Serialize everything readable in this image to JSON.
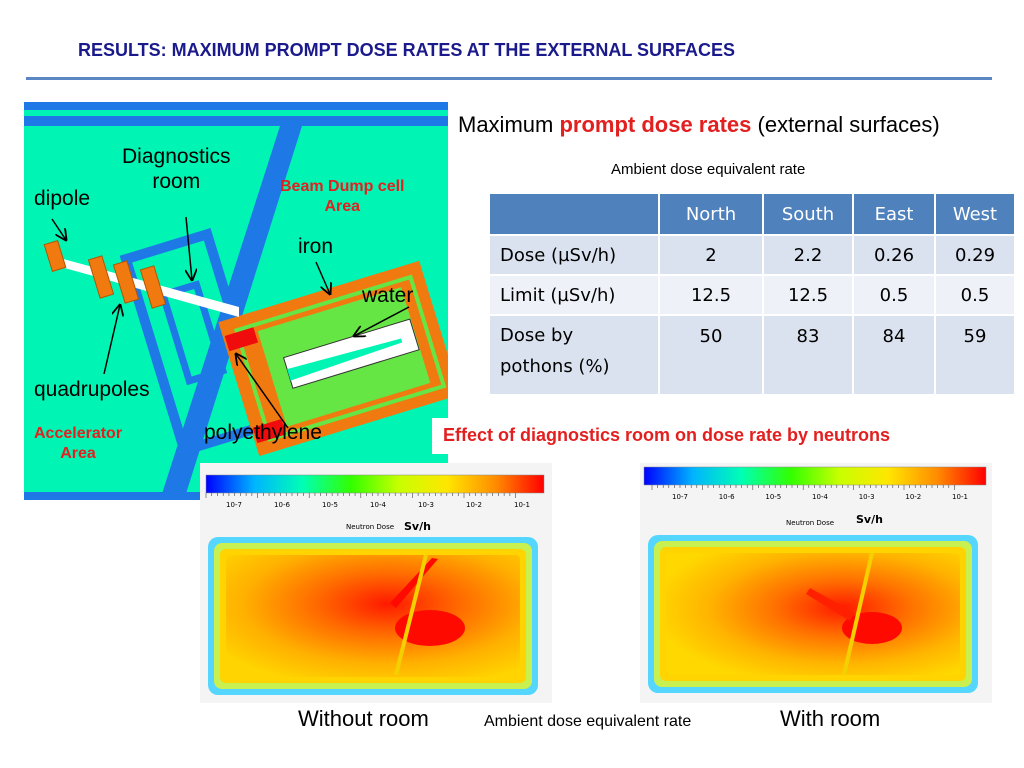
{
  "slide": {
    "title": "RESULTS: MAXIMUM PROMPT DOSE RATES AT THE EXTERNAL SURFACES"
  },
  "schematic": {
    "labels": {
      "diagnostics_room": "Diagnostics\nroom",
      "dipole": "dipole",
      "beam_dump_cell_area": "Beam Dump cell\nArea",
      "iron": "iron",
      "water": "water",
      "quadrupoles": "quadrupoles",
      "accelerator_area": "Accelerator\nArea",
      "polyethylene": "polyethylene"
    },
    "colors": {
      "background": "#00f5b4",
      "concrete_wall": "#1e78e6",
      "iron": "#f07a10",
      "water": "#66e645",
      "polyethylene": "#f00c0c",
      "beam_line": "#ffffff"
    }
  },
  "heading": {
    "prefix": "Maximum ",
    "highlight": "prompt dose rates",
    "suffix": " (external surfaces)"
  },
  "ambient_label_top": "Ambient dose equivalent rate",
  "table": {
    "columns": [
      "",
      "North",
      "South",
      "East",
      "West"
    ],
    "rows": [
      {
        "label": "Dose (µSv/h)",
        "values": [
          "2",
          "2.2",
          "0.26",
          "0.29"
        ]
      },
      {
        "label": "Limit (µSv/h)",
        "values": [
          "12.5",
          "12.5",
          "0.5",
          "0.5"
        ]
      },
      {
        "label": "Dose by\npothons (%)",
        "values": [
          "50",
          "83",
          "84",
          "59"
        ]
      }
    ]
  },
  "effect_title": "Effect of diagnostics room on dose rate by neutrons",
  "dose_maps": {
    "colorbar_ticks": [
      "10-7",
      "10-6",
      "10-5",
      "10-4",
      "10-3",
      "10-2",
      "10-1"
    ],
    "colorbar_title": "Neutron Dose",
    "colorbar_unit": "Sv/h",
    "colorbar_colors": [
      "#0000ff",
      "#00b4ff",
      "#00ffb4",
      "#32ff00",
      "#c8ff00",
      "#ffe600",
      "#ff8c00",
      "#ff0000"
    ],
    "left_caption": "Without room",
    "right_caption": "With room"
  },
  "ambient_label_bottom": "Ambient dose equivalent rate"
}
